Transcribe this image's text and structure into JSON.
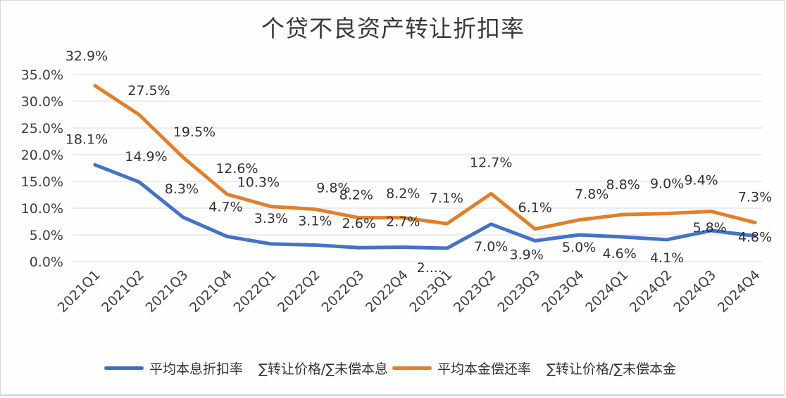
{
  "chart_data": {
    "type": "line",
    "title": "个贷不良资产转让折扣率",
    "xlabel": "",
    "ylabel": "",
    "ylim": [
      0,
      35
    ],
    "yticks": [
      "0.0%",
      "5.0%",
      "10.0%",
      "15.0%",
      "20.0%",
      "25.0%",
      "30.0%",
      "35.0%"
    ],
    "grid": true,
    "legend_position": "bottom",
    "categories": [
      "2021Q1",
      "2021Q2",
      "2021Q3",
      "2021Q4",
      "2022Q1",
      "2022Q2",
      "2022Q3",
      "2022Q4",
      "2023Q1",
      "2023Q2",
      "2023Q3",
      "2023Q4",
      "2024Q1",
      "2024Q2",
      "2024Q3",
      "2024Q4"
    ],
    "series": [
      {
        "name": "平均本息折扣率",
        "legend_note": "∑转让价格/∑未偿本息",
        "color": "#4472c4",
        "values": [
          18.1,
          14.9,
          8.3,
          4.7,
          3.3,
          3.1,
          2.6,
          2.7,
          2.5,
          7.0,
          3.9,
          5.0,
          4.6,
          4.1,
          5.8,
          4.8
        ],
        "labels": [
          "18.1%",
          "14.9%",
          "8.3%",
          "4.7%",
          "3.3%",
          "3.1%",
          "2.6%",
          "2.7%",
          "2....",
          "7.0%",
          "3.9%",
          "5.0%",
          "4.6%",
          "4.1%",
          "5.8%",
          "4.8%"
        ]
      },
      {
        "name": "平均本金偿还率",
        "legend_note": "∑转让价格/∑未偿本金",
        "color": "#e07f2c",
        "values": [
          32.9,
          27.5,
          19.5,
          12.6,
          10.3,
          9.8,
          8.2,
          8.2,
          7.1,
          12.7,
          6.1,
          7.8,
          8.8,
          9.0,
          9.4,
          7.3
        ],
        "labels": [
          "32.9%",
          "27.5%",
          "19.5%",
          "12.6%",
          "10.3%",
          "9.8%",
          "8.2%",
          "8.2%",
          "7.1%",
          "12.7%",
          "6.1%",
          "7.8%",
          "8.8%",
          "9.0%",
          "9.4%",
          "7.3%"
        ]
      }
    ]
  },
  "legend": {
    "items": [
      {
        "label": "平均本息折扣率",
        "note": "∑转让价格/∑未偿本息",
        "color": "#3d6db5"
      },
      {
        "label": "平均本金偿还率",
        "note": "∑转让价格/∑未偿本金",
        "color": "#e07f2c"
      }
    ]
  }
}
